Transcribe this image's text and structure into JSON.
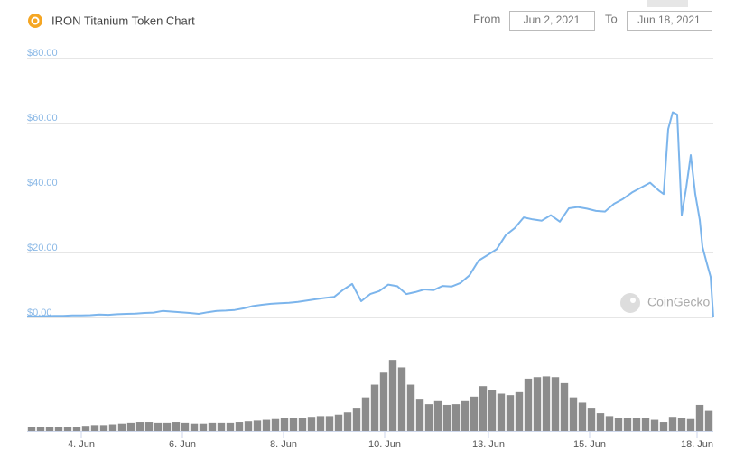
{
  "header": {
    "title": "IRON Titanium Token Chart"
  },
  "controls": {
    "from_label": "From",
    "from_value": "Jun 2, 2021",
    "to_label": "To",
    "to_value": "Jun 18, 2021"
  },
  "watermark": "CoinGecko",
  "chart_data": [
    {
      "type": "line",
      "color": "#7cb5ec",
      "grid": true,
      "xlim": [
        0,
        76
      ],
      "x": [
        0,
        1,
        2,
        3,
        4,
        5,
        6,
        7,
        8,
        9,
        10,
        11,
        12,
        13,
        14,
        15,
        16,
        17,
        18,
        19,
        20,
        21,
        22,
        23,
        24,
        25,
        26,
        27,
        28,
        29,
        30,
        31,
        32,
        33,
        34,
        35,
        36,
        37,
        38,
        39,
        40,
        41,
        42,
        43,
        44,
        45,
        46,
        47,
        48,
        49,
        50,
        51,
        52,
        53,
        54,
        55,
        56,
        57,
        58,
        59,
        60,
        61,
        62,
        63,
        64,
        65,
        66,
        67,
        68,
        69,
        70,
        70.5,
        71,
        71.5,
        72,
        72.5,
        73,
        73.5,
        74,
        74.5,
        74.8,
        75.3,
        75.7,
        76
      ],
      "values": [
        0.3,
        0.3,
        0.4,
        0.5,
        0.5,
        0.6,
        0.6,
        0.7,
        0.9,
        0.8,
        1.0,
        1.1,
        1.2,
        1.4,
        1.5,
        2.0,
        1.8,
        1.6,
        1.4,
        1.1,
        1.6,
        2.0,
        2.1,
        2.3,
        2.8,
        3.5,
        3.9,
        4.2,
        4.4,
        4.5,
        4.8,
        5.2,
        5.6,
        6.0,
        6.3,
        8.5,
        10.3,
        5.0,
        7.2,
        8.1,
        10.1,
        9.6,
        7.2,
        7.8,
        8.6,
        8.4,
        9.7,
        9.5,
        10.6,
        13.0,
        17.5,
        19.2,
        21.0,
        25.3,
        27.5,
        30.8,
        30.2,
        29.8,
        31.5,
        29.5,
        33.6,
        34.0,
        33.5,
        32.8,
        32.6,
        35.0,
        36.5,
        38.5,
        40.0,
        41.5,
        39.0,
        38.0,
        58.0,
        63.2,
        62.5,
        31.5,
        40.0,
        50.0,
        38.0,
        30.0,
        21.7,
        16.5,
        12.5,
        0
      ],
      "ylim": [
        0,
        80
      ],
      "yticks": [
        {
          "value": 0,
          "label": "$0.00"
        },
        {
          "value": 20,
          "label": "$20.00"
        },
        {
          "value": 40,
          "label": "$40.00"
        },
        {
          "value": 60,
          "label": "$60.00"
        },
        {
          "value": 80,
          "label": "$80.00"
        }
      ]
    },
    {
      "type": "bar",
      "color": "#8c8c8c",
      "xlim": [
        0,
        76
      ],
      "ylim": [
        0,
        100
      ],
      "values": [
        6,
        6,
        6,
        5,
        5,
        6,
        7,
        8,
        8,
        9,
        10,
        11,
        12,
        12,
        11,
        11,
        12,
        11,
        10,
        10,
        11,
        11,
        11,
        12,
        13,
        14,
        15,
        16,
        17,
        18,
        18,
        19,
        20,
        20,
        22,
        25,
        30,
        45,
        62,
        78,
        95,
        85,
        62,
        42,
        36,
        40,
        35,
        36,
        40,
        46,
        60,
        55,
        50,
        48,
        52,
        70,
        72,
        73,
        72,
        64,
        45,
        38,
        30,
        24,
        20,
        18,
        18,
        17,
        18,
        15,
        12,
        19,
        18,
        16,
        35,
        27
      ],
      "xticks": [
        {
          "value": 6,
          "label": "4. Jun"
        },
        {
          "value": 17.2,
          "label": "6. Jun"
        },
        {
          "value": 28.4,
          "label": "8. Jun"
        },
        {
          "value": 39.6,
          "label": "10. Jun"
        },
        {
          "value": 51.1,
          "label": "13. Jun"
        },
        {
          "value": 62.3,
          "label": "15. Jun"
        },
        {
          "value": 74.2,
          "label": "18. Jun"
        }
      ]
    }
  ]
}
